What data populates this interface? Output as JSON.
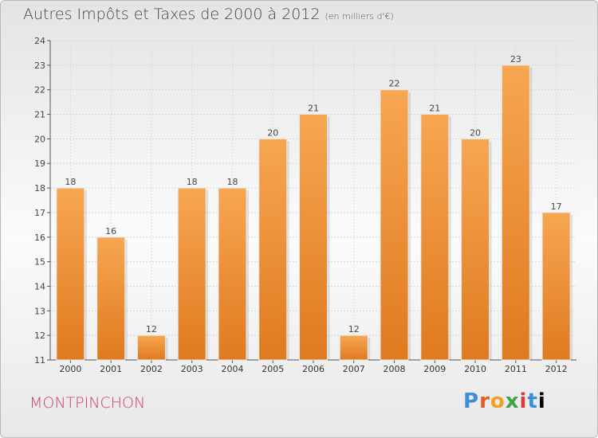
{
  "header": {
    "title": "Autres Impôts et Taxes de 2000 à 2012",
    "subtitle": "(en milliers d'€)"
  },
  "footer": {
    "commune": "MONTPINCHON",
    "brand": "Proxiti"
  },
  "colors": {
    "bar_top": "#f7a652",
    "bar_bottom": "#df7a1f",
    "commune": "#cf3a6a"
  },
  "chart_data": {
    "type": "bar",
    "title": "Autres Impôts et Taxes de 2000 à 2012",
    "subtitle": "(en milliers d'€)",
    "categories": [
      "2000",
      "2001",
      "2002",
      "2003",
      "2004",
      "2005",
      "2006",
      "2007",
      "2008",
      "2009",
      "2010",
      "2011",
      "2012"
    ],
    "values": [
      18,
      16,
      12,
      18,
      18,
      20,
      21,
      12,
      22,
      21,
      20,
      23,
      17
    ],
    "ylim": [
      11,
      24
    ],
    "yticks": [
      11,
      12,
      13,
      14,
      15,
      16,
      17,
      18,
      19,
      20,
      21,
      22,
      23,
      24
    ],
    "grid": true,
    "data_labels": true
  }
}
